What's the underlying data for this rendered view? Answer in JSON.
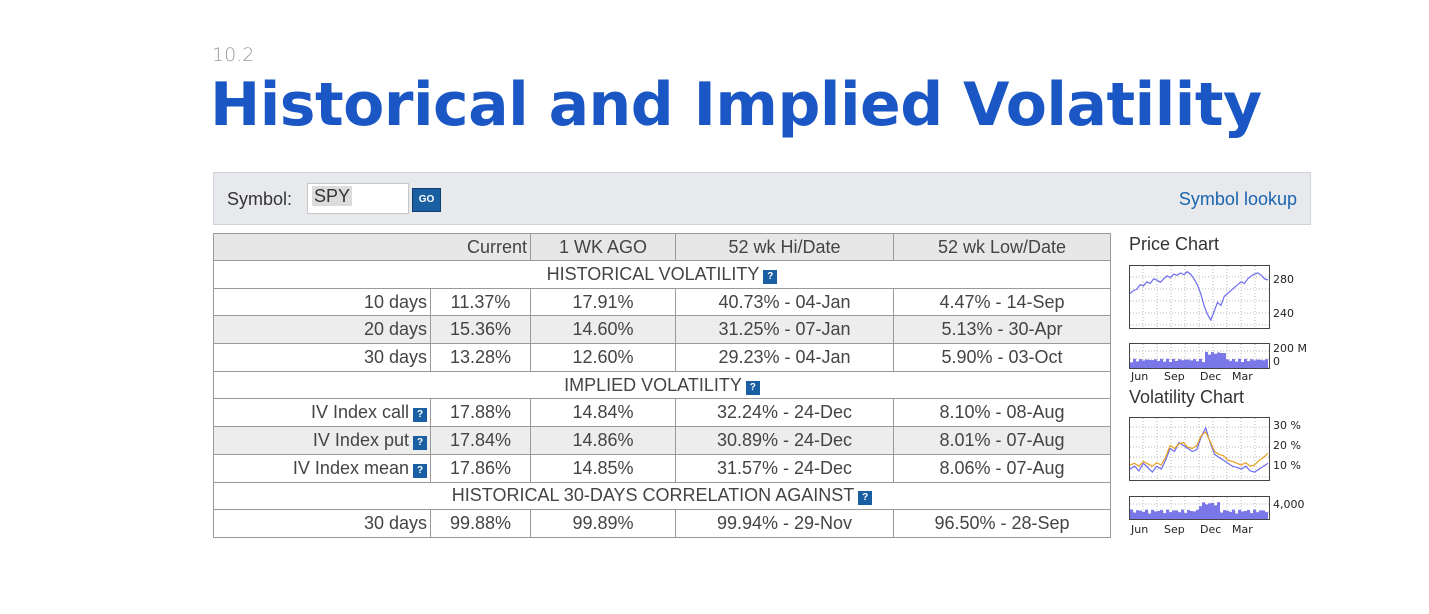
{
  "header": {
    "section_number": "10.2",
    "title": "Historical and Implied Volatility"
  },
  "symbol_bar": {
    "label": "Symbol:",
    "value": "SPY",
    "go_label": "GO",
    "lookup_label": "Symbol lookup"
  },
  "table": {
    "columns": [
      "",
      "Current",
      "1 WK AGO",
      "52 wk Hi/Date",
      "52 wk Low/Date"
    ],
    "help_icon": "?",
    "sections": {
      "historical": "HISTORICAL VOLATILITY",
      "implied": "IMPLIED VOLATILITY",
      "correlation": "HISTORICAL 30-DAYS CORRELATION AGAINST"
    },
    "hv_rows": [
      {
        "label": "10 days",
        "current": "11.37%",
        "week_ago": "17.91%",
        "high": "40.73% - 04-Jan",
        "low": "4.47% - 14-Sep"
      },
      {
        "label": "20 days",
        "current": "15.36%",
        "week_ago": "14.60%",
        "high": "31.25% - 07-Jan",
        "low": "5.13% - 30-Apr"
      },
      {
        "label": "30 days",
        "current": "13.28%",
        "week_ago": "12.60%",
        "high": "29.23% - 04-Jan",
        "low": "5.90% - 03-Oct"
      }
    ],
    "iv_rows": [
      {
        "label": "IV Index call",
        "current": "17.88%",
        "week_ago": "14.84%",
        "high": "32.24% - 24-Dec",
        "low": "8.10% - 08-Aug"
      },
      {
        "label": "IV Index put",
        "current": "17.84%",
        "week_ago": "14.86%",
        "high": "30.89% - 24-Dec",
        "low": "8.01% - 07-Aug"
      },
      {
        "label": "IV Index mean",
        "current": "17.86%",
        "week_ago": "14.85%",
        "high": "31.57% - 24-Dec",
        "low": "8.06% - 07-Aug"
      }
    ],
    "corr_rows": [
      {
        "label": "30 days",
        "current": "99.88%",
        "week_ago": "99.89%",
        "high": "99.94% - 29-Nov",
        "low": "96.50% - 28-Sep"
      }
    ]
  },
  "side": {
    "price_chart_title": "Price Chart",
    "price_ticks": [
      "280",
      "240"
    ],
    "price_volume_ticks": [
      "200 M",
      "0"
    ],
    "volatility_chart_title": "Volatility Chart",
    "vol_ticks": [
      "30 %",
      "20 %",
      "10 %"
    ],
    "vol_volume_ticks": [
      "4,000 "
    ],
    "months": [
      "Jun",
      "Sep",
      "Dec",
      "Mar"
    ]
  },
  "colors": {
    "title": "#1a56c4",
    "price_line": "#6c6cf0",
    "hv_line": "#6c6cf0",
    "iv_line": "#e8a020",
    "volume_bars": "#7a78e8",
    "help_icon": "#1b5fa3"
  }
}
